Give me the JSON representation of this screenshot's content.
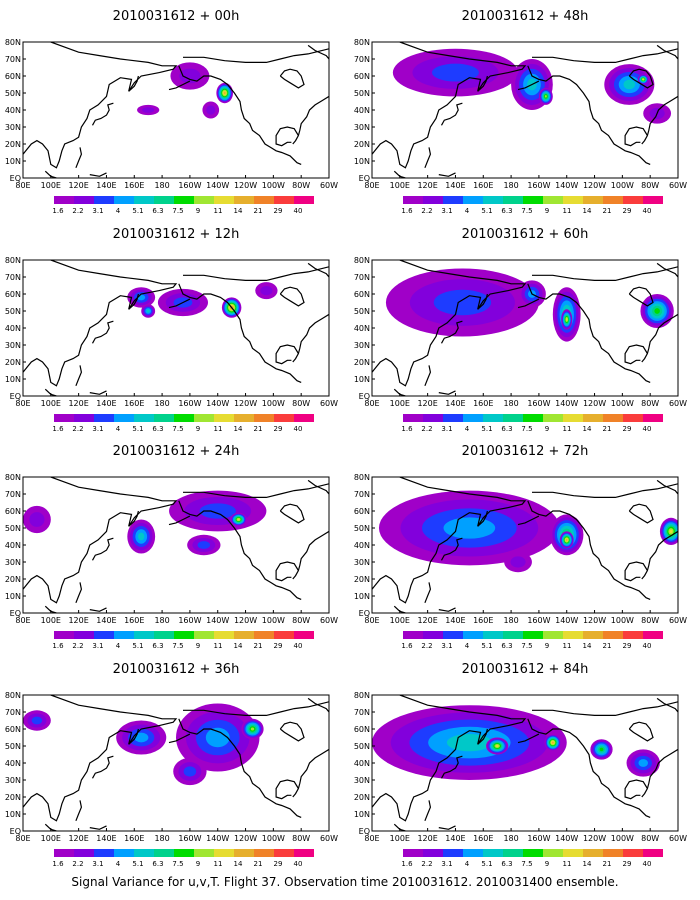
{
  "figure": {
    "caption": "Signal Variance for u,v,T. Flight 37. Observation time 2010031612. 2010031400 ensemble."
  },
  "colorbar": {
    "labels": [
      "1.6",
      "2.2",
      "3.1",
      "4",
      "5.1",
      "6.3",
      "7.5",
      "9",
      "11",
      "14",
      "21",
      "29",
      "40"
    ],
    "colors": [
      "#a000c8",
      "#8200dc",
      "#1e3cff",
      "#00a0ff",
      "#00c8c8",
      "#00d28c",
      "#00dc00",
      "#a0e632",
      "#e6dc32",
      "#e6af2d",
      "#f08228",
      "#fa3c3c",
      "#f00082"
    ]
  },
  "map_labels": {
    "lat": [
      "80N",
      "70N",
      "60N",
      "50N",
      "40N",
      "30N",
      "20N",
      "10N",
      "EQ"
    ],
    "lon": [
      "80E",
      "100E",
      "120E",
      "140E",
      "160E",
      "180",
      "160W",
      "140W",
      "120W",
      "100W",
      "80W",
      "60W"
    ]
  },
  "chart_data": [
    {
      "type": "heatmap",
      "title": "2010031612 + 00h",
      "lead_hours": 0,
      "blobs": [
        {
          "lon": -135,
          "lat": 50,
          "rlon": 6,
          "rlat": 6,
          "level": 9
        },
        {
          "lon": -145,
          "lat": 40,
          "rlon": 6,
          "rlat": 5,
          "level": 1
        },
        {
          "lon": -160,
          "lat": 60,
          "rlon": 14,
          "rlat": 8,
          "level": 1
        },
        {
          "lon": 170,
          "lat": 40,
          "rlon": 8,
          "rlat": 3,
          "level": 1
        }
      ]
    },
    {
      "type": "heatmap",
      "title": "2010031612 + 48h",
      "lead_hours": 48,
      "blobs": [
        {
          "lon": 140,
          "lat": 62,
          "rlon": 45,
          "rlat": 14,
          "level": 2
        },
        {
          "lon": -165,
          "lat": 55,
          "rlon": 15,
          "rlat": 15,
          "level": 4
        },
        {
          "lon": -155,
          "lat": 48,
          "rlon": 5,
          "rlat": 5,
          "level": 7
        },
        {
          "lon": -95,
          "lat": 55,
          "rlon": 18,
          "rlat": 12,
          "level": 4
        },
        {
          "lon": -85,
          "lat": 58,
          "rlon": 4,
          "rlat": 3,
          "level": 8
        },
        {
          "lon": -75,
          "lat": 38,
          "rlon": 10,
          "rlat": 6,
          "level": 1
        }
      ]
    },
    {
      "type": "heatmap",
      "title": "2010031612 + 12h",
      "lead_hours": 12,
      "blobs": [
        {
          "lon": -130,
          "lat": 52,
          "rlon": 7,
          "rlat": 6,
          "level": 10
        },
        {
          "lon": -165,
          "lat": 55,
          "rlon": 18,
          "rlat": 8,
          "level": 2
        },
        {
          "lon": 165,
          "lat": 58,
          "rlon": 10,
          "rlat": 6,
          "level": 3
        },
        {
          "lon": -105,
          "lat": 62,
          "rlon": 8,
          "rlat": 5,
          "level": 1
        },
        {
          "lon": 170,
          "lat": 50,
          "rlon": 5,
          "rlat": 4,
          "level": 4
        }
      ]
    },
    {
      "type": "heatmap",
      "title": "2010031612 + 60h",
      "lead_hours": 60,
      "blobs": [
        {
          "lon": 145,
          "lat": 55,
          "rlon": 55,
          "rlat": 20,
          "level": 2
        },
        {
          "lon": -140,
          "lat": 48,
          "rlon": 10,
          "rlat": 16,
          "level": 5
        },
        {
          "lon": -140,
          "lat": 45,
          "rlon": 4,
          "rlat": 6,
          "level": 8
        },
        {
          "lon": -75,
          "lat": 50,
          "rlon": 12,
          "rlat": 10,
          "level": 6
        },
        {
          "lon": -165,
          "lat": 60,
          "rlon": 10,
          "rlat": 8,
          "level": 3
        }
      ]
    },
    {
      "type": "heatmap",
      "title": "2010031612 + 24h",
      "lead_hours": 24,
      "blobs": [
        {
          "lon": -140,
          "lat": 60,
          "rlon": 35,
          "rlat": 12,
          "level": 2
        },
        {
          "lon": -125,
          "lat": 55,
          "rlon": 6,
          "rlat": 4,
          "level": 8
        },
        {
          "lon": 165,
          "lat": 45,
          "rlon": 10,
          "rlat": 10,
          "level": 4
        },
        {
          "lon": 90,
          "lat": 55,
          "rlon": 10,
          "rlat": 8,
          "level": 1
        },
        {
          "lon": -150,
          "lat": 40,
          "rlon": 12,
          "rlat": 6,
          "level": 2
        }
      ]
    },
    {
      "type": "heatmap",
      "title": "2010031612 + 72h",
      "lead_hours": 72,
      "blobs": [
        {
          "lon": 150,
          "lat": 50,
          "rlon": 65,
          "rlat": 22,
          "level": 3
        },
        {
          "lon": -140,
          "lat": 46,
          "rlon": 12,
          "rlat": 12,
          "level": 6
        },
        {
          "lon": -140,
          "lat": 43,
          "rlon": 5,
          "rlat": 5,
          "level": 9
        },
        {
          "lon": -65,
          "lat": 48,
          "rlon": 8,
          "rlat": 8,
          "level": 8
        },
        {
          "lon": -175,
          "lat": 30,
          "rlon": 10,
          "rlat": 6,
          "level": 1
        }
      ]
    },
    {
      "type": "heatmap",
      "title": "2010031612 + 36h",
      "lead_hours": 36,
      "blobs": [
        {
          "lon": -140,
          "lat": 55,
          "rlon": 30,
          "rlat": 20,
          "level": 3
        },
        {
          "lon": -115,
          "lat": 60,
          "rlon": 8,
          "rlat": 6,
          "level": 7
        },
        {
          "lon": 165,
          "lat": 55,
          "rlon": 18,
          "rlat": 10,
          "level": 3
        },
        {
          "lon": 90,
          "lat": 65,
          "rlon": 10,
          "rlat": 6,
          "level": 2
        },
        {
          "lon": -160,
          "lat": 35,
          "rlon": 12,
          "rlat": 8,
          "level": 2
        }
      ]
    },
    {
      "type": "heatmap",
      "title": "2010031612 + 84h",
      "lead_hours": 84,
      "blobs": [
        {
          "lon": 150,
          "lat": 52,
          "rlon": 70,
          "rlat": 22,
          "level": 4
        },
        {
          "lon": 170,
          "lat": 50,
          "rlon": 8,
          "rlat": 5,
          "level": 8
        },
        {
          "lon": -150,
          "lat": 52,
          "rlon": 6,
          "rlat": 5,
          "level": 9
        },
        {
          "lon": -115,
          "lat": 48,
          "rlon": 8,
          "rlat": 6,
          "level": 6
        },
        {
          "lon": -85,
          "lat": 40,
          "rlon": 12,
          "rlat": 8,
          "level": 3
        }
      ]
    }
  ]
}
